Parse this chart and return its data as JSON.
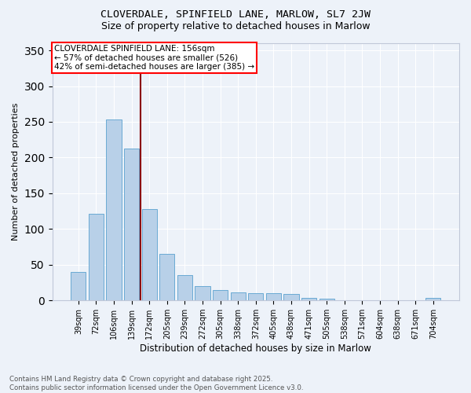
{
  "title1": "CLOVERDALE, SPINFIELD LANE, MARLOW, SL7 2JW",
  "title2": "Size of property relative to detached houses in Marlow",
  "xlabel": "Distribution of detached houses by size in Marlow",
  "ylabel": "Number of detached properties",
  "categories": [
    "39sqm",
    "72sqm",
    "106sqm",
    "139sqm",
    "172sqm",
    "205sqm",
    "239sqm",
    "272sqm",
    "305sqm",
    "338sqm",
    "372sqm",
    "405sqm",
    "438sqm",
    "471sqm",
    "505sqm",
    "538sqm",
    "571sqm",
    "604sqm",
    "638sqm",
    "671sqm",
    "704sqm"
  ],
  "values": [
    40,
    121,
    253,
    213,
    128,
    65,
    35,
    20,
    15,
    11,
    10,
    10,
    9,
    4,
    2,
    0,
    0,
    0,
    0,
    0,
    3
  ],
  "bar_color": "#b8d0e8",
  "bar_edge_color": "#6aaad4",
  "annotation_title": "CLOVERDALE SPINFIELD LANE: 156sqm",
  "annotation_line1": "← 57% of detached houses are smaller (526)",
  "annotation_line2": "42% of semi-detached houses are larger (385) →",
  "annotation_box_color": "white",
  "annotation_box_edge": "red",
  "vline_color": "darkred",
  "vline_index": 3.5,
  "ylim": [
    0,
    360
  ],
  "yticks": [
    0,
    50,
    100,
    150,
    200,
    250,
    300,
    350
  ],
  "background_color": "#edf2f9",
  "grid_color": "white",
  "footer": "Contains HM Land Registry data © Crown copyright and database right 2025.\nContains public sector information licensed under the Open Government Licence v3.0."
}
